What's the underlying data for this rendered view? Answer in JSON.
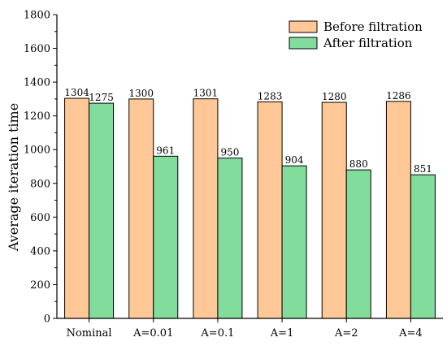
{
  "chart_data": {
    "type": "bar",
    "categories": [
      "Nominal",
      "A=0.01",
      "A=0.1",
      "A=1",
      "A=2",
      "A=4"
    ],
    "series": [
      {
        "name": "Before filtration",
        "values": [
          1304,
          1300,
          1301,
          1283,
          1280,
          1286
        ],
        "color": "#FFC896"
      },
      {
        "name": "After filtration",
        "values": [
          1275,
          961,
          950,
          904,
          880,
          851
        ],
        "color": "#82DC9B"
      }
    ],
    "title": "",
    "xlabel": "",
    "ylabel": "Average iteration time",
    "ylim": [
      0,
      1800
    ],
    "yticks": [
      0,
      200,
      400,
      600,
      800,
      1000,
      1200,
      1400,
      1600,
      1800
    ],
    "grid": false,
    "legend_position": "top-right",
    "data_labels": true
  }
}
